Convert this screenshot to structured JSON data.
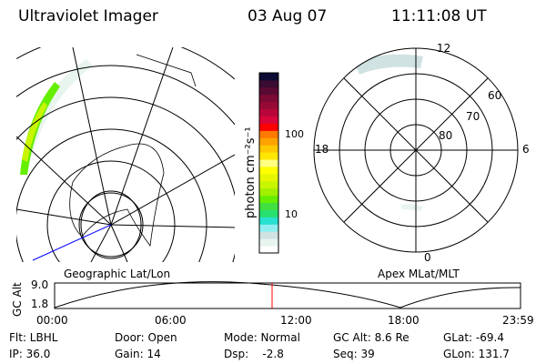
{
  "header": {
    "instrument": "Ultraviolet Imager",
    "date": "03 Aug 07",
    "time": "11:11:08 UT"
  },
  "left_plot": {
    "label": "Geographic Lat/Lon"
  },
  "right_plot": {
    "label": "Apex MLat/MLT",
    "mlt_labels": [
      "12",
      "6",
      "0",
      "18"
    ],
    "lat_labels": [
      "60",
      "70",
      "80"
    ]
  },
  "colorbar": {
    "unit_label": "photon cm⁻²s⁻¹",
    "tick_labels": [
      "100",
      "10"
    ],
    "scale": "log",
    "colors": [
      "#0b0b33",
      "#3a0c32",
      "#5a0a32",
      "#7c0a34",
      "#970a36",
      "#b8063a",
      "#d8063a",
      "#ff0000",
      "#ff7a00",
      "#ffa200",
      "#ffc800",
      "#ffe600",
      "#ffff80",
      "#ffff00",
      "#e6f700",
      "#c8f500",
      "#a0f000",
      "#66ee00",
      "#40e040",
      "#28e070",
      "#28e0d0",
      "#90eef0",
      "#d0e2e2",
      "#e8f4ee",
      "#ffffff"
    ]
  },
  "timeline": {
    "ylabel": "GC Alt",
    "y_ticks": [
      "9.0",
      "1.8"
    ],
    "x_ticks": [
      "00:00",
      "06:00",
      "12:00",
      "18:00",
      "23:59"
    ],
    "current_time_marker": "11:11",
    "marker_color": "#ff0000"
  },
  "status": {
    "flt": "Flt: LBHL",
    "ip": "IP: 36.0",
    "door": "Door: Open",
    "gain": "Gain: 14",
    "mode": "Mode: Normal",
    "dsp": "Dsp:    -2.8",
    "gc_alt": "GC Alt: 8.6 Re",
    "seq": "Seq: 39",
    "glat": "GLat: -69.4",
    "glon": "GLon: 131.7"
  }
}
